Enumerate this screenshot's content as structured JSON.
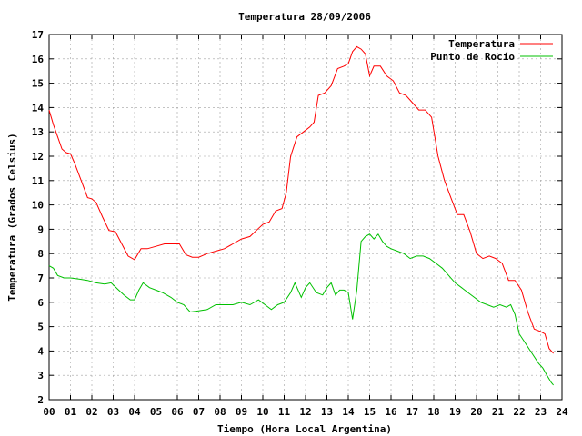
{
  "chart_data": {
    "type": "line",
    "title": "Temperatura 28/09/2006",
    "xlabel": "Tiempo (Hora Local Argentina)",
    "ylabel": "Temperatura (Grados Celsius)",
    "xlim": [
      0,
      24
    ],
    "ylim": [
      2,
      17
    ],
    "x_ticks": [
      "00",
      "01",
      "02",
      "03",
      "04",
      "05",
      "06",
      "07",
      "08",
      "09",
      "10",
      "11",
      "12",
      "13",
      "14",
      "15",
      "16",
      "17",
      "18",
      "19",
      "20",
      "21",
      "22",
      "23",
      "24"
    ],
    "y_ticks": [
      "2",
      "3",
      "4",
      "5",
      "6",
      "7",
      "8",
      "9",
      "10",
      "11",
      "12",
      "13",
      "14",
      "15",
      "16",
      "17"
    ],
    "grid": true,
    "legend_position": "top-right",
    "series": [
      {
        "name": "Temperatura",
        "color": "#ff0000",
        "x": [
          0.0,
          0.2,
          0.4,
          0.6,
          0.8,
          1.0,
          1.2,
          1.5,
          1.8,
          2.0,
          2.2,
          2.5,
          2.8,
          3.1,
          3.4,
          3.7,
          4.0,
          4.3,
          4.6,
          5.0,
          5.4,
          5.8,
          6.1,
          6.4,
          6.7,
          7.0,
          7.4,
          7.8,
          8.2,
          8.6,
          9.0,
          9.4,
          9.7,
          10.0,
          10.3,
          10.6,
          10.9,
          11.1,
          11.3,
          11.6,
          11.9,
          12.2,
          12.4,
          12.6,
          12.9,
          13.2,
          13.5,
          13.8,
          14.0,
          14.2,
          14.4,
          14.6,
          14.8,
          15.0,
          15.2,
          15.5,
          15.8,
          16.1,
          16.4,
          16.7,
          17.0,
          17.3,
          17.6,
          17.9,
          18.2,
          18.5,
          18.8,
          19.1,
          19.4,
          19.7,
          20.0,
          20.3,
          20.6,
          20.9,
          21.2,
          21.5,
          21.8,
          22.1,
          22.4,
          22.7,
          23.0,
          23.2,
          23.4,
          23.6
        ],
        "values": [
          13.9,
          13.3,
          12.8,
          12.3,
          12.15,
          12.1,
          11.7,
          11.0,
          10.3,
          10.25,
          10.1,
          9.5,
          8.95,
          8.9,
          8.4,
          7.9,
          7.75,
          8.2,
          8.2,
          8.3,
          8.4,
          8.4,
          8.4,
          7.95,
          7.85,
          7.85,
          8.0,
          8.1,
          8.2,
          8.4,
          8.6,
          8.7,
          8.95,
          9.2,
          9.3,
          9.75,
          9.85,
          10.5,
          12.0,
          12.8,
          13.0,
          13.2,
          13.4,
          14.5,
          14.6,
          14.9,
          15.6,
          15.7,
          15.8,
          16.3,
          16.5,
          16.4,
          16.2,
          15.3,
          15.7,
          15.7,
          15.3,
          15.1,
          14.6,
          14.5,
          14.2,
          13.9,
          13.9,
          13.6,
          12.0,
          11.0,
          10.3,
          9.6,
          9.6,
          8.9,
          8.0,
          7.8,
          7.9,
          7.8,
          7.6,
          6.9,
          6.9,
          6.5,
          5.6,
          4.9,
          4.8,
          4.7,
          4.1,
          3.9
        ]
      },
      {
        "name": "Punto de Rocío",
        "color": "#00c000",
        "x": [
          0.0,
          0.2,
          0.4,
          0.7,
          1.0,
          1.4,
          1.8,
          2.2,
          2.6,
          2.9,
          3.2,
          3.5,
          3.8,
          4.0,
          4.2,
          4.4,
          4.7,
          5.0,
          5.3,
          5.7,
          6.0,
          6.3,
          6.6,
          7.0,
          7.4,
          7.8,
          8.2,
          8.6,
          9.0,
          9.4,
          9.8,
          10.1,
          10.4,
          10.7,
          11.0,
          11.3,
          11.5,
          11.8,
          12.0,
          12.2,
          12.5,
          12.8,
          13.0,
          13.2,
          13.4,
          13.6,
          13.8,
          14.0,
          14.2,
          14.4,
          14.6,
          14.8,
          15.0,
          15.2,
          15.4,
          15.6,
          15.8,
          16.0,
          16.3,
          16.6,
          16.9,
          17.2,
          17.5,
          17.8,
          18.1,
          18.4,
          18.7,
          19.0,
          19.3,
          19.6,
          19.9,
          20.2,
          20.5,
          20.8,
          21.1,
          21.4,
          21.6,
          21.8,
          22.0,
          22.3,
          22.6,
          22.9,
          23.1,
          23.3,
          23.5,
          23.6
        ],
        "values": [
          7.5,
          7.4,
          7.1,
          7.0,
          7.0,
          6.95,
          6.9,
          6.8,
          6.75,
          6.8,
          6.55,
          6.3,
          6.1,
          6.1,
          6.5,
          6.8,
          6.6,
          6.5,
          6.4,
          6.2,
          6.0,
          5.9,
          5.6,
          5.65,
          5.7,
          5.9,
          5.9,
          5.9,
          6.0,
          5.9,
          6.1,
          5.9,
          5.7,
          5.9,
          6.0,
          6.4,
          6.8,
          6.2,
          6.6,
          6.8,
          6.4,
          6.3,
          6.6,
          6.8,
          6.3,
          6.5,
          6.5,
          6.4,
          5.3,
          6.5,
          8.5,
          8.7,
          8.8,
          8.6,
          8.8,
          8.5,
          8.3,
          8.2,
          8.1,
          8.0,
          7.8,
          7.9,
          7.9,
          7.8,
          7.6,
          7.4,
          7.1,
          6.8,
          6.6,
          6.4,
          6.2,
          6.0,
          5.9,
          5.8,
          5.9,
          5.8,
          5.9,
          5.5,
          4.7,
          4.3,
          3.9,
          3.5,
          3.3,
          3.0,
          2.7,
          2.6
        ]
      }
    ]
  }
}
